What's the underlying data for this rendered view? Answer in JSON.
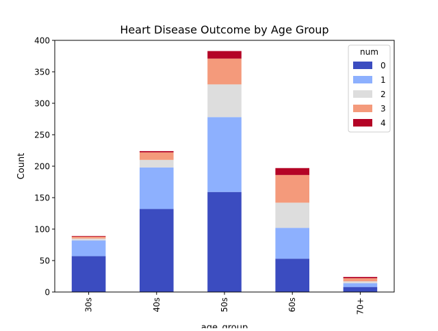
{
  "chart_data": {
    "type": "bar",
    "stacked": true,
    "title": "Heart Disease Outcome by Age Group",
    "xlabel": "age_group",
    "ylabel": "Count",
    "ylim": [
      0,
      400
    ],
    "yticks": [
      0,
      50,
      100,
      150,
      200,
      250,
      300,
      350,
      400
    ],
    "categories": [
      "30s",
      "40s",
      "50s",
      "60s",
      "70+"
    ],
    "legend": {
      "title": "num",
      "placement": "top-right"
    },
    "grid": false,
    "series": [
      {
        "name": "0",
        "color": "#3b4cc0",
        "values": [
          57,
          132,
          159,
          53,
          8
        ]
      },
      {
        "name": "1",
        "color": "#8db0fe",
        "values": [
          25,
          66,
          119,
          49,
          6
        ]
      },
      {
        "name": "2",
        "color": "#dddddd",
        "values": [
          3,
          12,
          52,
          40,
          3
        ]
      },
      {
        "name": "3",
        "color": "#f49a7b",
        "values": [
          3,
          12,
          41,
          44,
          5
        ]
      },
      {
        "name": "4",
        "color": "#b40426",
        "values": [
          1,
          2,
          12,
          11,
          2
        ]
      }
    ]
  }
}
